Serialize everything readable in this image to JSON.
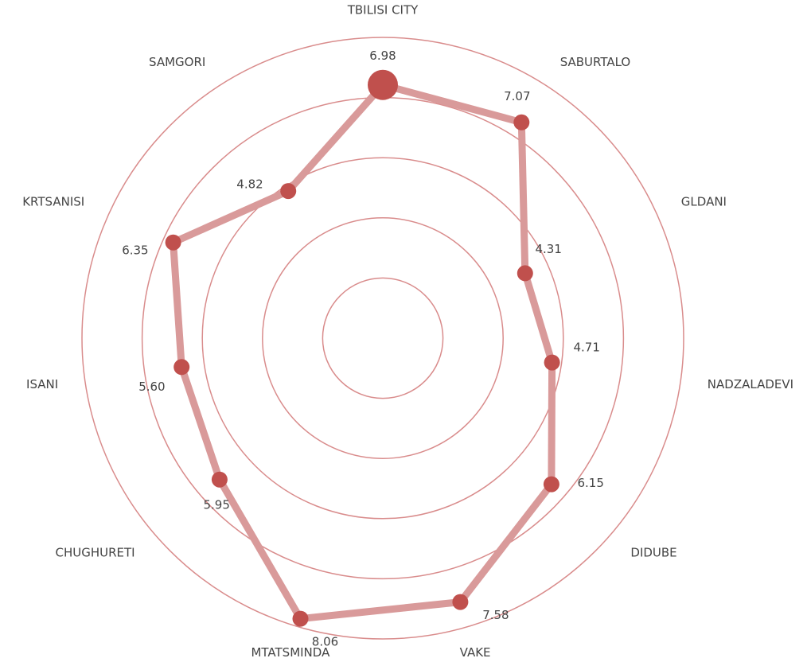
{
  "chart_data": {
    "type": "radar",
    "categories": [
      "TBILISI CITY",
      "SABURTALO",
      "GLDANI",
      "NADZALADEVI",
      "DIDUBE",
      "VAKE",
      "MTATSMINDA",
      "CHUGHURETI",
      "ISANI",
      "KRTSANISI",
      "SAMGORI"
    ],
    "series": [
      {
        "values": [
          6.98,
          7.07,
          4.31,
          4.71,
          6.15,
          7.58,
          8.06,
          5.95,
          5.6,
          6.35,
          4.82
        ]
      }
    ],
    "value_labels": [
      "6.98",
      "7.07",
      "4.31",
      "4.71",
      "6.15",
      "7.58",
      "8.06",
      "5.95",
      "5.60",
      "6.35",
      "4.82"
    ],
    "highlighted_category": "TBILISI CITY",
    "rings": 5,
    "colors": {
      "line": "#d99a9a",
      "point": "#c0504d",
      "grid": "#d98c8c",
      "text": "#444444"
    }
  }
}
